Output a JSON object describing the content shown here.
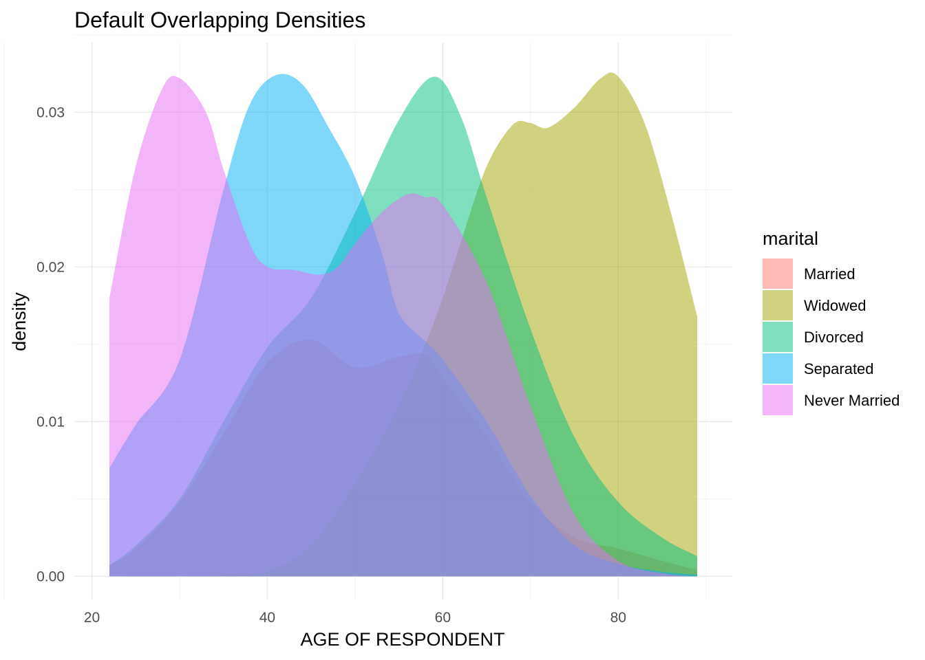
{
  "chart_data": {
    "type": "area",
    "title": "Default Overlapping Densities",
    "xlabel": "AGE OF RESPONDENT",
    "ylabel": "density",
    "xlim": [
      18,
      93
    ],
    "ylim": [
      -0.0015,
      0.0345
    ],
    "x_ticks": [
      20,
      40,
      60,
      80
    ],
    "y_ticks": [
      0.0,
      0.01,
      0.02,
      0.03
    ],
    "x_tick_labels": [
      "20",
      "40",
      "60",
      "80"
    ],
    "y_tick_labels": [
      "0.00",
      "0.01",
      "0.02",
      "0.03"
    ],
    "grid": true,
    "legend_position": "right",
    "legend_title": "marital",
    "fill_opacity": 0.5,
    "series": [
      {
        "name": "Married",
        "color": "#F8766D",
        "x": [
          22,
          25,
          30,
          35,
          40,
          45,
          50,
          55,
          58,
          60,
          65,
          70,
          75,
          80,
          85,
          89
        ],
        "y": [
          0.0007,
          0.0018,
          0.0048,
          0.0092,
          0.0138,
          0.0153,
          0.0135,
          0.0142,
          0.0143,
          0.0128,
          0.009,
          0.0048,
          0.0025,
          0.0018,
          0.001,
          0.0004
        ]
      },
      {
        "name": "Widowed",
        "color": "#A3A500",
        "x": [
          22,
          30,
          35,
          40,
          45,
          50,
          55,
          58,
          60,
          62,
          65,
          68,
          70,
          72,
          75,
          78,
          80,
          83,
          86,
          89
        ],
        "y": [
          0.0,
          0.0,
          0.0001,
          0.0003,
          0.002,
          0.006,
          0.011,
          0.015,
          0.018,
          0.0215,
          0.0265,
          0.0292,
          0.0293,
          0.029,
          0.0303,
          0.0322,
          0.0323,
          0.0293,
          0.0235,
          0.0168
        ]
      },
      {
        "name": "Divorced",
        "color": "#00BF7D",
        "x": [
          22,
          25,
          30,
          35,
          40,
          45,
          50,
          55,
          59,
          62,
          65,
          70,
          75,
          80,
          85,
          89
        ],
        "y": [
          0.0007,
          0.002,
          0.005,
          0.01,
          0.0148,
          0.018,
          0.0235,
          0.0295,
          0.0323,
          0.0298,
          0.0245,
          0.016,
          0.009,
          0.0048,
          0.0025,
          0.0013
        ]
      },
      {
        "name": "Separated",
        "color": "#00B0F6",
        "x": [
          22,
          25,
          30,
          35,
          38,
          41,
          44,
          47,
          50,
          53,
          55,
          58,
          60,
          65,
          70,
          75,
          80,
          85,
          89
        ],
        "y": [
          0.007,
          0.0098,
          0.014,
          0.025,
          0.0305,
          0.0324,
          0.0318,
          0.029,
          0.0258,
          0.021,
          0.017,
          0.0152,
          0.014,
          0.01,
          0.0052,
          0.002,
          0.0008,
          0.0003,
          0.0001
        ]
      },
      {
        "name": "Never Married",
        "color": "#E76BF3",
        "x": [
          22,
          25,
          28,
          30,
          33,
          35,
          38,
          40,
          43,
          46,
          48,
          50,
          53,
          56,
          58,
          60,
          65,
          70,
          75,
          80,
          85,
          89
        ],
        "y": [
          0.018,
          0.0265,
          0.0315,
          0.0322,
          0.03,
          0.0263,
          0.0215,
          0.02,
          0.0198,
          0.0195,
          0.02,
          0.0215,
          0.0235,
          0.0247,
          0.0245,
          0.024,
          0.019,
          0.011,
          0.004,
          0.001,
          0.0002,
          0.0
        ]
      }
    ]
  }
}
